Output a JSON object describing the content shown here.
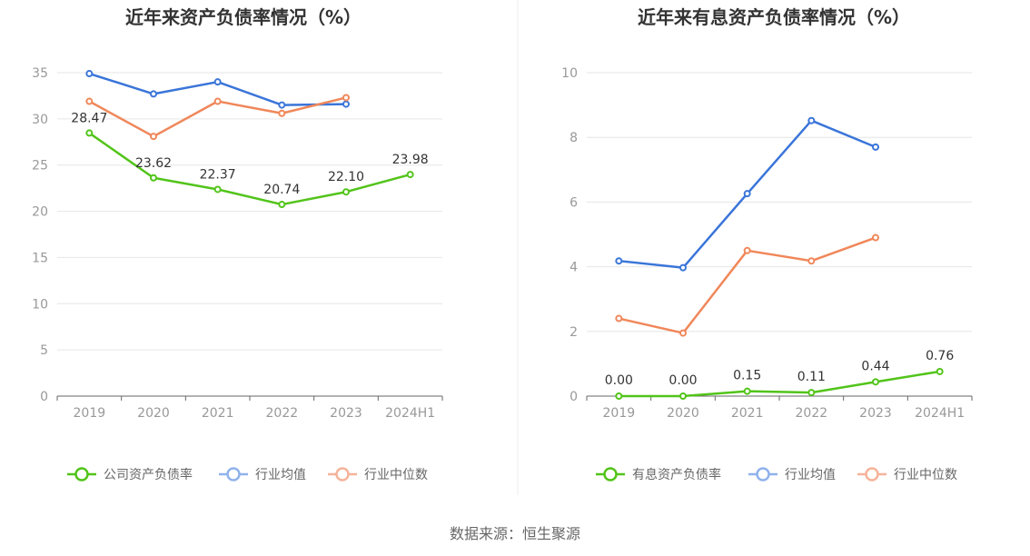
{
  "source": "数据来源：恒生聚源",
  "chart_data": [
    {
      "type": "line",
      "title": "近年来资产负债率情况（%）",
      "categories": [
        "2019",
        "2020",
        "2021",
        "2022",
        "2023",
        "2024H1"
      ],
      "ylim": [
        0,
        35
      ],
      "yticks": [
        0,
        5,
        10,
        15,
        20,
        25,
        30,
        35
      ],
      "grid": true,
      "legend_position": "bottom",
      "series": [
        {
          "name": "公司资产负债率",
          "color": "#52c41a",
          "values": [
            28.47,
            23.62,
            22.37,
            20.74,
            22.1,
            23.98
          ],
          "labels": [
            "28.47",
            "23.62",
            "22.37",
            "20.74",
            "22.10",
            "23.98"
          ]
        },
        {
          "name": "行业均值",
          "color": "#3a75d9",
          "values": [
            34.9,
            32.7,
            34.0,
            31.5,
            31.6,
            null
          ]
        },
        {
          "name": "行业中位数",
          "color": "#f0875a",
          "values": [
            31.9,
            28.1,
            31.9,
            30.6,
            32.3,
            null
          ]
        }
      ]
    },
    {
      "type": "line",
      "title": "近年来有息资产负债率情况（%）",
      "categories": [
        "2019",
        "2020",
        "2021",
        "2022",
        "2023",
        "2024H1"
      ],
      "ylim": [
        0,
        10
      ],
      "yticks": [
        0,
        2,
        4,
        6,
        8,
        10
      ],
      "grid": true,
      "legend_position": "bottom",
      "series": [
        {
          "name": "有息资产负债率",
          "color": "#52c41a",
          "values": [
            0.0,
            0.0,
            0.15,
            0.11,
            0.44,
            0.76
          ],
          "labels": [
            "0.00",
            "0.00",
            "0.15",
            "0.11",
            "0.44",
            "0.76"
          ]
        },
        {
          "name": "行业均值",
          "color": "#3a75d9",
          "values": [
            4.18,
            3.97,
            6.26,
            8.52,
            7.7,
            null
          ]
        },
        {
          "name": "行业中位数",
          "color": "#f0875a",
          "values": [
            2.4,
            1.95,
            4.5,
            4.18,
            4.9,
            null
          ]
        }
      ]
    }
  ]
}
